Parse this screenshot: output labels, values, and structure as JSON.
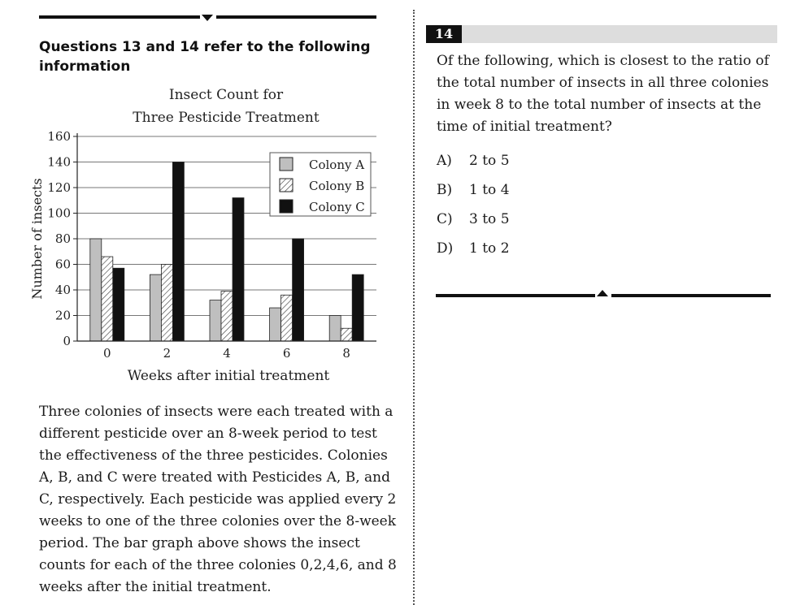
{
  "section_heading": "Questions 13 and 14 refer to the following information",
  "chart_data": {
    "type": "bar",
    "title_lines": [
      "Insect Count for",
      "Three Pesticide Treatment"
    ],
    "xlabel": "Weeks after initial treatment",
    "ylabel": "Number of insects",
    "categories": [
      "0",
      "2",
      "4",
      "6",
      "8"
    ],
    "series": [
      {
        "name": "Colony A",
        "values": [
          80,
          52,
          32,
          26,
          20
        ],
        "fill": "solid-gray"
      },
      {
        "name": "Colony B",
        "values": [
          66,
          60,
          39,
          36,
          10
        ],
        "fill": "hatched"
      },
      {
        "name": "Colony C",
        "values": [
          57,
          140,
          112,
          80,
          52
        ],
        "fill": "solid-black"
      }
    ],
    "ylim": [
      0,
      160
    ],
    "yticks": [
      0,
      20,
      40,
      60,
      80,
      100,
      120,
      140,
      160
    ],
    "grid": true,
    "legend": "top-right",
    "colors": {
      "colony_a": "#bfbfbf",
      "colony_b": "#ffffff",
      "colony_c": "#111111"
    }
  },
  "passage": "Three colonies of insects were each treated with a different pesticide over an 8-week period to test the effectiveness of the three pesticides. Colonies A, B, and C were treated with Pesticides A, B, and C, respectively. Each pesticide was applied every 2 weeks to one of the three colonies over the 8-week period. The bar graph above shows the insect counts for each of the three colonies 0,2,4,6, and 8 weeks after the initial treatment.",
  "question": {
    "number": "14",
    "text": "Of the following, which is closest to the ratio of the total number of insects in all three colonies in week 8 to the total number of insects at the time of initial treatment?",
    "choices": [
      {
        "letter": "A)",
        "text": "2 to 5"
      },
      {
        "letter": "B)",
        "text": "1 to 4"
      },
      {
        "letter": "C)",
        "text": "3 to 5"
      },
      {
        "letter": "D)",
        "text": "1 to 2"
      }
    ]
  }
}
